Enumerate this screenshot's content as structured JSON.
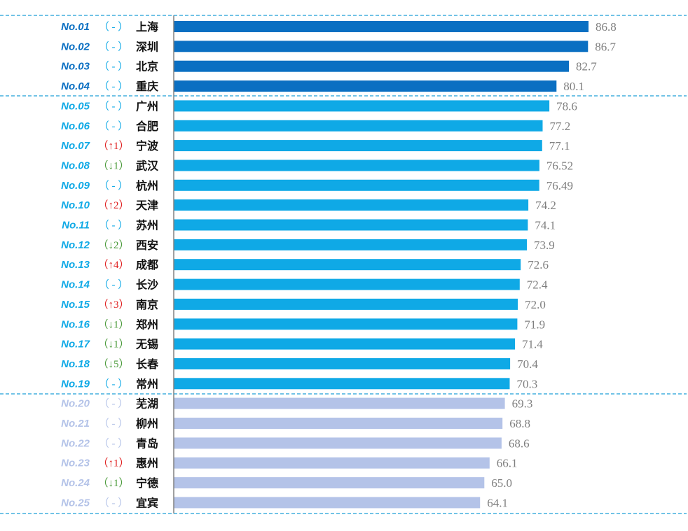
{
  "chart_data": {
    "type": "bar",
    "orientation": "horizontal",
    "title": "",
    "xlabel": "",
    "ylabel": "",
    "xlim": [
      0,
      86.8
    ],
    "grid": false,
    "legend": "none",
    "colors": {
      "tier1": "#0a6fc2",
      "tier2": "#0fa9e6",
      "tier3": "#b4c3e8",
      "rank_tier1": "#0a6fc2",
      "rank_tier2": "#0fa9e6",
      "rank_tier3": "#b4c3e8",
      "up": "#e02020",
      "down": "#4a9a3a",
      "same": "#0fa9e6",
      "same_tier3": "#b4c3e8",
      "separator": "#1f9fd8",
      "axis": "#808080"
    },
    "rows": [
      {
        "rank": "No.01",
        "change": "（ - ）",
        "dir": "same",
        "city": "上海",
        "value": 86.8,
        "label": "86.8",
        "tier": 1
      },
      {
        "rank": "No.02",
        "change": "（ - ）",
        "dir": "same",
        "city": "深圳",
        "value": 86.7,
        "label": "86.7",
        "tier": 1
      },
      {
        "rank": "No.03",
        "change": "（ - ）",
        "dir": "same",
        "city": "北京",
        "value": 82.7,
        "label": "82.7",
        "tier": 1
      },
      {
        "rank": "No.04",
        "change": "（ - ）",
        "dir": "same",
        "city": "重庆",
        "value": 80.1,
        "label": "80.1",
        "tier": 1
      },
      {
        "rank": "No.05",
        "change": "（ - ）",
        "dir": "same",
        "city": "广州",
        "value": 78.6,
        "label": "78.6",
        "tier": 2
      },
      {
        "rank": "No.06",
        "change": "（ - ）",
        "dir": "same",
        "city": "合肥",
        "value": 77.2,
        "label": "77.2",
        "tier": 2
      },
      {
        "rank": "No.07",
        "change": "（↑1）",
        "dir": "up",
        "city": "宁波",
        "value": 77.1,
        "label": "77.1",
        "tier": 2
      },
      {
        "rank": "No.08",
        "change": "（↓1）",
        "dir": "down",
        "city": "武汉",
        "value": 76.52,
        "label": "76.52",
        "tier": 2
      },
      {
        "rank": "No.09",
        "change": "（ - ）",
        "dir": "same",
        "city": "杭州",
        "value": 76.49,
        "label": "76.49",
        "tier": 2
      },
      {
        "rank": "No.10",
        "change": "（↑2）",
        "dir": "up",
        "city": "天津",
        "value": 74.2,
        "label": "74.2",
        "tier": 2
      },
      {
        "rank": "No.11",
        "change": "（ - ）",
        "dir": "same",
        "city": "苏州",
        "value": 74.1,
        "label": "74.1",
        "tier": 2
      },
      {
        "rank": "No.12",
        "change": "（↓2）",
        "dir": "down",
        "city": "西安",
        "value": 73.9,
        "label": "73.9",
        "tier": 2
      },
      {
        "rank": "No.13",
        "change": "（↑4）",
        "dir": "up",
        "city": "成都",
        "value": 72.6,
        "label": "72.6",
        "tier": 2
      },
      {
        "rank": "No.14",
        "change": "（ - ）",
        "dir": "same",
        "city": "长沙",
        "value": 72.4,
        "label": "72.4",
        "tier": 2
      },
      {
        "rank": "No.15",
        "change": "（↑3）",
        "dir": "up",
        "city": "南京",
        "value": 72.0,
        "label": "72.0",
        "tier": 2
      },
      {
        "rank": "No.16",
        "change": "（↓1）",
        "dir": "down",
        "city": "郑州",
        "value": 71.9,
        "label": "71.9",
        "tier": 2
      },
      {
        "rank": "No.17",
        "change": "（↓1）",
        "dir": "down",
        "city": "无锡",
        "value": 71.4,
        "label": "71.4",
        "tier": 2
      },
      {
        "rank": "No.18",
        "change": "（↓5）",
        "dir": "down",
        "city": "长春",
        "value": 70.4,
        "label": "70.4",
        "tier": 2
      },
      {
        "rank": "No.19",
        "change": "（ - ）",
        "dir": "same",
        "city": "常州",
        "value": 70.3,
        "label": "70.3",
        "tier": 2
      },
      {
        "rank": "No.20",
        "change": "（ - ）",
        "dir": "same",
        "city": "芜湖",
        "value": 69.3,
        "label": "69.3",
        "tier": 3
      },
      {
        "rank": "No.21",
        "change": "（ - ）",
        "dir": "same",
        "city": "柳州",
        "value": 68.8,
        "label": "68.8",
        "tier": 3
      },
      {
        "rank": "No.22",
        "change": "（ - ）",
        "dir": "same",
        "city": "青岛",
        "value": 68.6,
        "label": "68.6",
        "tier": 3
      },
      {
        "rank": "No.23",
        "change": "（↑1）",
        "dir": "up",
        "city": "惠州",
        "value": 66.1,
        "label": "66.1",
        "tier": 3
      },
      {
        "rank": "No.24",
        "change": "（↓1）",
        "dir": "down",
        "city": "宁德",
        "value": 65.0,
        "label": "65.0",
        "tier": 3
      },
      {
        "rank": "No.25",
        "change": "（ - ）",
        "dir": "same",
        "city": "宜宾",
        "value": 64.1,
        "label": "64.1",
        "tier": 3
      }
    ]
  }
}
